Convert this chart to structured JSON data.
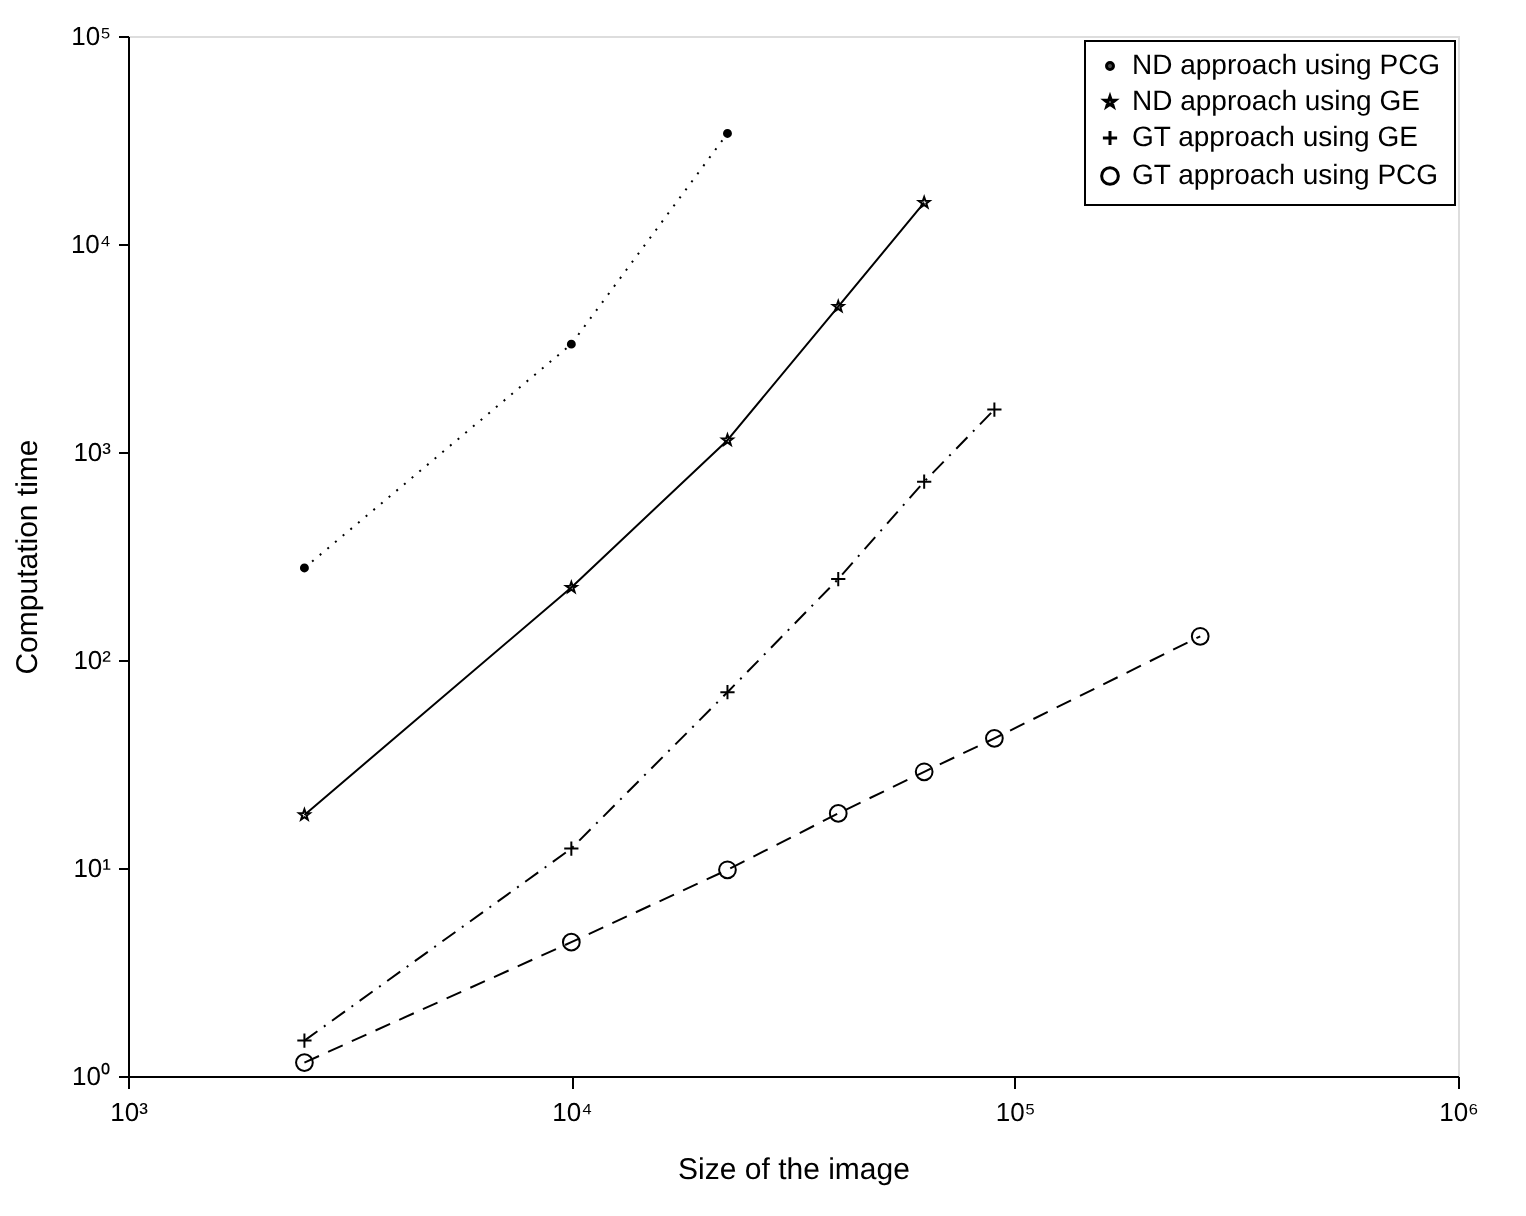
{
  "chart_data": {
    "type": "line",
    "xlabel": "Size of the image",
    "ylabel": "Computation time",
    "log": "xy",
    "grid": false,
    "legend": "top right",
    "xlim": [
      1000,
      1000000
    ],
    "ylim": [
      1,
      100000
    ],
    "xticks": [
      {
        "value": 1000,
        "label": "10³"
      },
      {
        "value": 10000,
        "label": "10⁴"
      },
      {
        "value": 100000,
        "label": "10⁵"
      },
      {
        "value": 1000000,
        "label": "10⁶"
      }
    ],
    "yticks": [
      {
        "value": 1,
        "label": "10⁰"
      },
      {
        "value": 10,
        "label": "10¹"
      },
      {
        "value": 100,
        "label": "10²"
      },
      {
        "value": 1000,
        "label": "10³"
      },
      {
        "value": 10000,
        "label": "10⁴"
      },
      {
        "value": 100000,
        "label": "10⁵"
      }
    ],
    "series": [
      {
        "name": "ND approach using PCG",
        "color": "#000000",
        "marker": "circle",
        "line_style": "dotted",
        "x": [
          2500,
          10000,
          22500
        ],
        "values": [
          277,
          3300,
          34000
        ]
      },
      {
        "name": "ND approach using GE",
        "color": "#000000",
        "marker": "star",
        "line_style": "solid",
        "x": [
          2500,
          10000,
          22500,
          40000,
          62500
        ],
        "values": [
          18,
          223,
          1140,
          5000,
          15800
        ]
      },
      {
        "name": "GT approach using GE",
        "color": "#000000",
        "marker": "cross",
        "line_style": "dashdot",
        "x": [
          2500,
          10000,
          22500,
          40000,
          62500,
          90000
        ],
        "values": [
          1.48,
          12.4,
          70,
          245,
          720,
          1600
        ]
      },
      {
        "name": "GT approach using PCG",
        "color": "#000000",
        "marker": "circle",
        "line_style": "dashed",
        "x": [
          2500,
          10000,
          22500,
          40000,
          62500,
          90000,
          262144
        ],
        "values": [
          1.16,
          4.4,
          9.8,
          18.3,
          29,
          42,
          130
        ]
      }
    ]
  }
}
